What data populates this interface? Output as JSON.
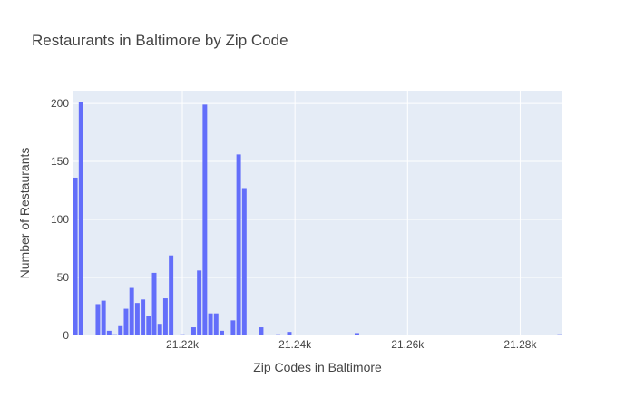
{
  "chart_data": {
    "type": "bar",
    "title": "Restaurants in Baltimore by Zip Code",
    "xlabel": "Zip Codes in Baltimore",
    "ylabel": "Number of Restaurants",
    "xlim": [
      21200.5,
      21287.5
    ],
    "ylim": [
      0,
      211
    ],
    "x_ticks": [
      21220,
      21240,
      21260,
      21280
    ],
    "x_tick_labels": [
      "21.22k",
      "21.24k",
      "21.26k",
      "21.28k"
    ],
    "y_ticks": [
      0,
      50,
      100,
      150,
      200
    ],
    "y_tick_labels": [
      "0",
      "50",
      "100",
      "150",
      "200"
    ],
    "grid": true,
    "bar_color": "#636efa",
    "plot_bg": "#e5ecf6",
    "bars": [
      {
        "x": 21201,
        "y": 136
      },
      {
        "x": 21202,
        "y": 201
      },
      {
        "x": 21205,
        "y": 27
      },
      {
        "x": 21206,
        "y": 30
      },
      {
        "x": 21207,
        "y": 4
      },
      {
        "x": 21208,
        "y": 1
      },
      {
        "x": 21209,
        "y": 8
      },
      {
        "x": 21210,
        "y": 23
      },
      {
        "x": 21211,
        "y": 41
      },
      {
        "x": 21212,
        "y": 28
      },
      {
        "x": 21213,
        "y": 31
      },
      {
        "x": 21214,
        "y": 17
      },
      {
        "x": 21215,
        "y": 54
      },
      {
        "x": 21216,
        "y": 10
      },
      {
        "x": 21217,
        "y": 32
      },
      {
        "x": 21218,
        "y": 69
      },
      {
        "x": 21220,
        "y": 1
      },
      {
        "x": 21222,
        "y": 7
      },
      {
        "x": 21223,
        "y": 56
      },
      {
        "x": 21224,
        "y": 199
      },
      {
        "x": 21225,
        "y": 19
      },
      {
        "x": 21226,
        "y": 19
      },
      {
        "x": 21227,
        "y": 4
      },
      {
        "x": 21229,
        "y": 13
      },
      {
        "x": 21230,
        "y": 156
      },
      {
        "x": 21231,
        "y": 127
      },
      {
        "x": 21234,
        "y": 7
      },
      {
        "x": 21237,
        "y": 1
      },
      {
        "x": 21239,
        "y": 3
      },
      {
        "x": 21251,
        "y": 2
      },
      {
        "x": 21287,
        "y": 1
      }
    ]
  }
}
